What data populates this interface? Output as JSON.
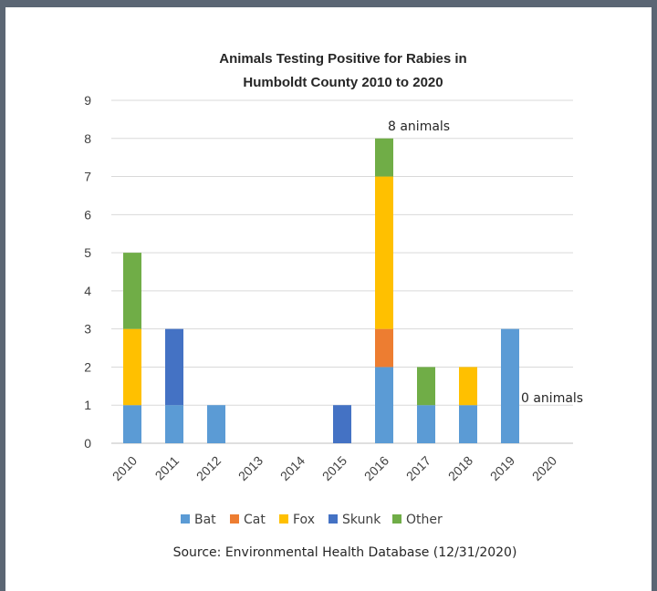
{
  "chart_data": {
    "type": "bar",
    "stacked": true,
    "title": "Animals Testing Positive for Rabies in Humboldt County 2010 to 2020",
    "title_lines": [
      "Animals Testing Positive for Rabies in",
      "Humboldt County 2010 to 2020"
    ],
    "categories": [
      "2010",
      "2011",
      "2012",
      "2013",
      "2014",
      "2015",
      "2016",
      "2017",
      "2018",
      "2019",
      "2020"
    ],
    "series": [
      {
        "name": "Bat",
        "color": "#5b9bd5",
        "values": [
          1,
          1,
          1,
          0,
          0,
          0,
          2,
          1,
          1,
          3,
          0
        ]
      },
      {
        "name": "Cat",
        "color": "#ed7d31",
        "values": [
          0,
          0,
          0,
          0,
          0,
          0,
          1,
          0,
          0,
          0,
          0
        ]
      },
      {
        "name": "Fox",
        "color": "#ffc000",
        "values": [
          2,
          0,
          0,
          0,
          0,
          0,
          4,
          0,
          1,
          0,
          0
        ]
      },
      {
        "name": "Skunk",
        "color": "#4472c4",
        "values": [
          0,
          2,
          0,
          0,
          0,
          1,
          0,
          0,
          0,
          0,
          0
        ]
      },
      {
        "name": "Other",
        "color": "#70ad47",
        "values": [
          2,
          0,
          0,
          0,
          0,
          0,
          1,
          1,
          0,
          0,
          0
        ]
      }
    ],
    "ylim": [
      0,
      9
    ],
    "yticks": [
      0,
      1,
      2,
      3,
      4,
      5,
      6,
      7,
      8,
      9
    ],
    "grid": true,
    "legend_position": "bottom",
    "annotations": [
      {
        "text": "8 animals",
        "category": "2016"
      },
      {
        "text": "0 animals",
        "category": "2020"
      }
    ],
    "source": "Source: Environmental Health Database (12/31/2020)"
  }
}
